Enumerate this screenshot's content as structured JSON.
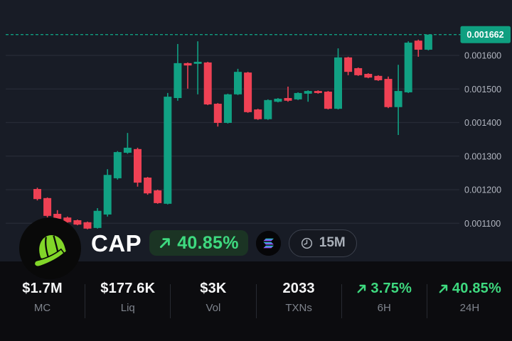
{
  "token_bar": {
    "symbol": "CAP",
    "avatar": "green-baseball-cap-logo",
    "change_badge": {
      "value": "40.85%",
      "direction": "up"
    },
    "chain": "Solana",
    "timeframe": "15M"
  },
  "price_axis": {
    "current_price_label": "0.001662",
    "tick_labels": [
      "0.001600",
      "0.001500",
      "0.001400",
      "0.001300",
      "0.001200",
      "0.001100"
    ]
  },
  "chart_data": {
    "type": "candlestick",
    "title": "CAP 15M candlestick price chart",
    "timeframe": "15M",
    "current_price": 0.001662,
    "grid": true,
    "legend": false,
    "y_ticks": [
      0.0016,
      0.0015,
      0.0014,
      0.0013,
      0.0012,
      0.0011
    ],
    "ylim": [
      0.00094,
      0.001765
    ],
    "candles_format": [
      "open",
      "high",
      "low",
      "close"
    ],
    "candles": [
      [
        0.001202,
        0.001206,
        0.001168,
        0.001172
      ],
      [
        0.001175,
        0.001177,
        0.001117,
        0.001122
      ],
      [
        0.001128,
        0.001139,
        0.001109,
        0.001113
      ],
      [
        0.001117,
        0.00112,
        0.001101,
        0.001103
      ],
      [
        0.001109,
        0.001111,
        0.001094,
        0.001096
      ],
      [
        0.001103,
        0.001105,
        0.001082,
        0.001084
      ],
      [
        0.001086,
        0.001145,
        0.001084,
        0.001137
      ],
      [
        0.001126,
        0.001261,
        0.00112,
        0.001244
      ],
      [
        0.001234,
        0.001315,
        0.00123,
        0.001312
      ],
      [
        0.00131,
        0.001369,
        0.001307,
        0.001325
      ],
      [
        0.001321,
        0.001325,
        0.001209,
        0.001221
      ],
      [
        0.001236,
        0.001238,
        0.001185,
        0.001189
      ],
      [
        0.001198,
        0.0012,
        0.001158,
        0.00116
      ],
      [
        0.001158,
        0.001488,
        0.001156,
        0.001477
      ],
      [
        0.001473,
        0.001634,
        0.001465,
        0.001577
      ],
      [
        0.001577,
        0.001579,
        0.001501,
        0.00157
      ],
      [
        0.001575,
        0.001642,
        0.001484,
        0.001581
      ],
      [
        0.001579,
        0.001581,
        0.001452,
        0.001454
      ],
      [
        0.001456,
        0.001458,
        0.001388,
        0.001399
      ],
      [
        0.001399,
        0.001486,
        0.001397,
        0.001484
      ],
      [
        0.001484,
        0.00156,
        0.001482,
        0.001551
      ],
      [
        0.001549,
        0.001551,
        0.001429,
        0.001431
      ],
      [
        0.001439,
        0.001441,
        0.001408,
        0.00141
      ],
      [
        0.00141,
        0.001469,
        0.001408,
        0.001467
      ],
      [
        0.001462,
        0.001473,
        0.00146,
        0.001471
      ],
      [
        0.001473,
        0.001507,
        0.001462,
        0.001465
      ],
      [
        0.001469,
        0.00149,
        0.001467,
        0.001488
      ],
      [
        0.001486,
        0.001496,
        0.001462,
        0.001494
      ],
      [
        0.001494,
        0.001496,
        0.001486,
        0.001488
      ],
      [
        0.001492,
        0.001494,
        0.001439,
        0.001441
      ],
      [
        0.001441,
        0.001621,
        0.001439,
        0.001594
      ],
      [
        0.001594,
        0.001596,
        0.001541,
        0.001551
      ],
      [
        0.001562,
        0.001564,
        0.001539,
        0.001541
      ],
      [
        0.001545,
        0.001547,
        0.001532,
        0.001534
      ],
      [
        0.001539,
        0.001541,
        0.001524,
        0.001526
      ],
      [
        0.00153,
        0.001537,
        0.001443,
        0.001446
      ],
      [
        0.001446,
        0.001572,
        0.001363,
        0.001494
      ],
      [
        0.00149,
        0.001642,
        0.001488,
        0.001638
      ],
      [
        0.001644,
        0.001647,
        0.001596,
        0.001617
      ],
      [
        0.001617,
        0.001662,
        0.001615,
        0.001662
      ]
    ]
  },
  "stats": {
    "items": [
      {
        "value": "$1.7M",
        "label": "MC"
      },
      {
        "value": "$177.6K",
        "label": "Liq"
      },
      {
        "value": "$3K",
        "label": "Vol"
      },
      {
        "value": "2033",
        "label": "TXNs"
      },
      {
        "value": "3.75%",
        "label": "6H",
        "direction": "up"
      },
      {
        "value": "40.85%",
        "label": "24H",
        "direction": "up"
      }
    ]
  },
  "colors": {
    "background": "#181c26",
    "panel": "#0c0c0f",
    "grid": "#272b36",
    "up": "#11a183",
    "down": "#ef4154",
    "accent": "#0f9f80",
    "positive_text": "#3ed97f",
    "axis_text": "#b2b6c0",
    "label_text": "#7f848d",
    "cap_green": "#82d629"
  }
}
